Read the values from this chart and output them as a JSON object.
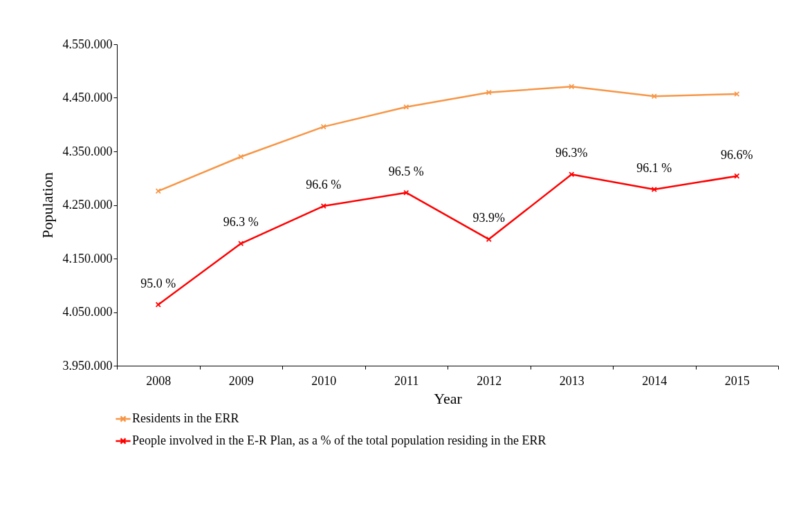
{
  "chart_data": {
    "type": "line",
    "xlabel": "Year",
    "ylabel": "Population",
    "categories": [
      "2008",
      "2009",
      "2010",
      "2011",
      "2012",
      "2013",
      "2014",
      "2015"
    ],
    "series": [
      {
        "name": "Residents in the ERR",
        "color": "#f79646",
        "values": [
          4276000,
          4340000,
          4396000,
          4433000,
          4460000,
          4471000,
          4453000,
          4457000
        ]
      },
      {
        "name": "People involved in the E-R Plan, as a % of the total population residing in the ERR",
        "color": "#ff0000",
        "values": [
          4064000,
          4178000,
          4248000,
          4273000,
          4186000,
          4307000,
          4279000,
          4304000
        ]
      }
    ],
    "ylim": [
      3950000,
      4550000
    ],
    "yticks": [
      {
        "value": 3950000,
        "label": "3.950.000"
      },
      {
        "value": 4050000,
        "label": "4.050.000"
      },
      {
        "value": 4150000,
        "label": "4.150.000"
      },
      {
        "value": 4250000,
        "label": "4.250.000"
      },
      {
        "value": 4350000,
        "label": "4.350.000"
      },
      {
        "value": 4450000,
        "label": "4.450.000"
      },
      {
        "value": 4550000,
        "label": "4.550.000"
      }
    ],
    "annotations": [
      {
        "text": "95.0 %",
        "x": "2008",
        "y": 4064000
      },
      {
        "text": "96.3 %",
        "x": "2009",
        "y": 4178000
      },
      {
        "text": "96.6 %",
        "x": "2010",
        "y": 4248000
      },
      {
        "text": "96.5 %",
        "x": "2011",
        "y": 4273000
      },
      {
        "text": "93.9%",
        "x": "2012",
        "y": 4186000
      },
      {
        "text": "96.3%",
        "x": "2013",
        "y": 4307000
      },
      {
        "text": "96.1 %",
        "x": "2014",
        "y": 4279000
      },
      {
        "text": "96.6%",
        "x": "2015",
        "y": 4304000
      }
    ],
    "grid": false,
    "legend": "bottom",
    "marker": "cross",
    "line_style": "solid"
  }
}
